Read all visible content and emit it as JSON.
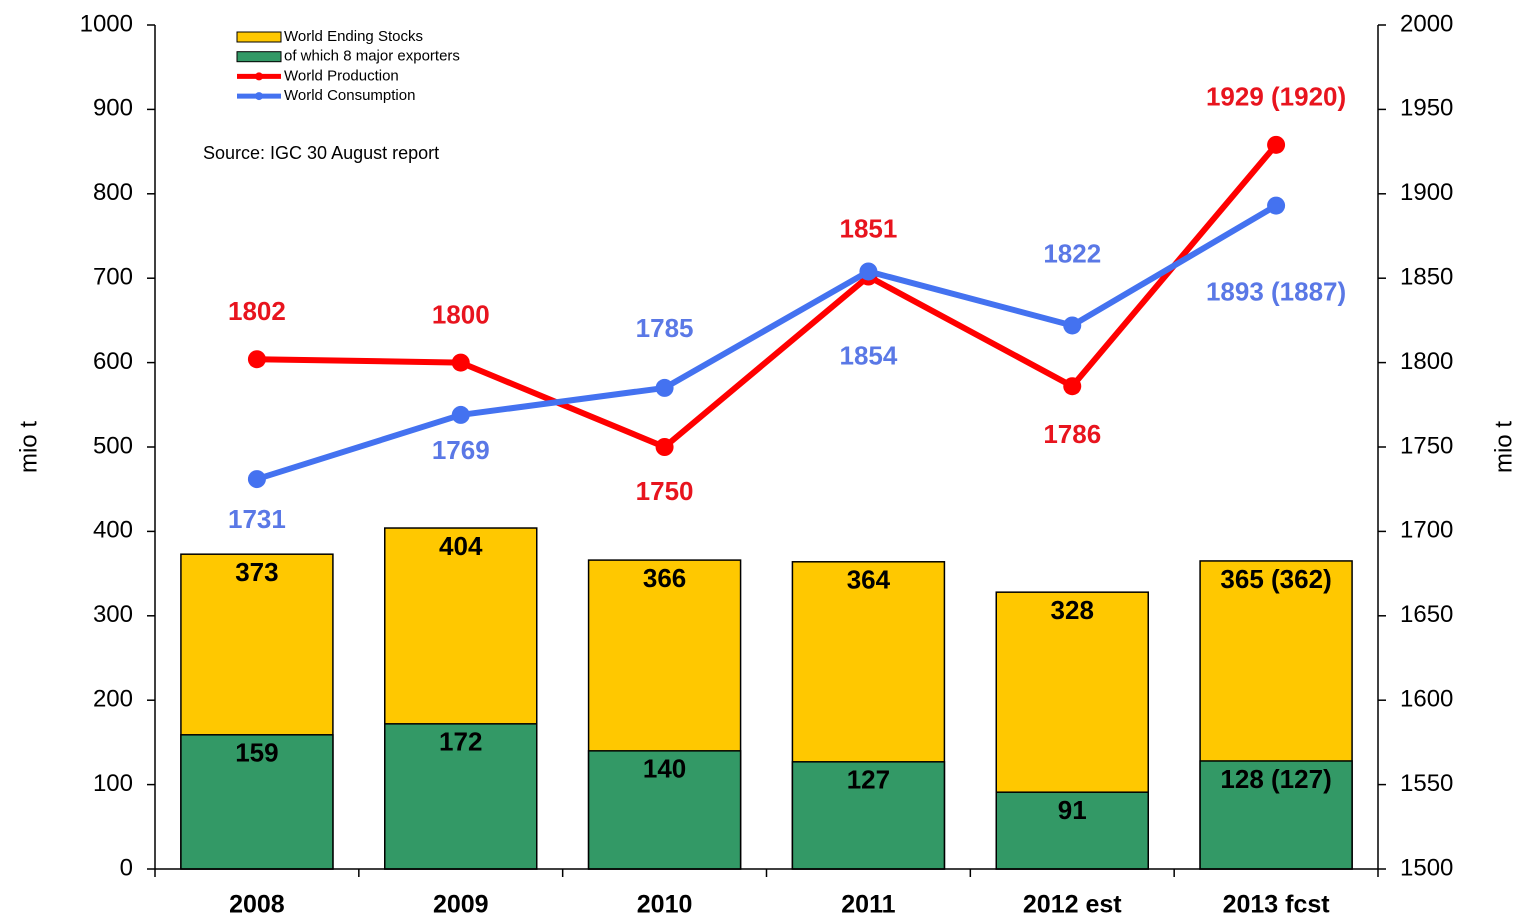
{
  "chart_data": {
    "type": "bar",
    "categories": [
      "2008",
      "2009",
      "2010",
      "2011",
      "2012 est",
      "2013 fcst"
    ],
    "series": [
      {
        "name": "World Ending Stocks",
        "type": "bar",
        "color": "#ffc800",
        "values": [
          373,
          404,
          366,
          364,
          328,
          365
        ],
        "value_labels": [
          "373",
          "404",
          "366",
          "364",
          "328",
          "365 (362)"
        ]
      },
      {
        "name": "of which 8 major exporters",
        "type": "bar",
        "color": "#339966",
        "values": [
          159,
          172,
          140,
          127,
          91,
          128
        ],
        "value_labels": [
          "159",
          "172",
          "140",
          "127",
          "91",
          "128 (127)"
        ]
      },
      {
        "name": "World Production",
        "type": "line",
        "axis": "y2",
        "color": "#ff0000",
        "label_color": "#e8141e",
        "values": [
          1802,
          1800,
          1750,
          1851,
          1786,
          1929
        ],
        "value_labels": [
          "1802",
          "1800",
          "1750",
          "1851",
          "1786",
          "1929 (1920)"
        ]
      },
      {
        "name": "World Consumption",
        "type": "line",
        "axis": "y2",
        "color": "#4472f0",
        "label_color": "#5a78e6",
        "values": [
          1731,
          1769,
          1785,
          1854,
          1822,
          1893
        ],
        "value_labels": [
          "1731",
          "1769",
          "1785",
          "1854",
          "1822",
          "1893 (1887)"
        ]
      }
    ],
    "ylabel": "mio t",
    "y2label": "mio t",
    "annotation": "Source: IGC 30 August report",
    "ylim": [
      0,
      1000
    ],
    "yticks": [
      0,
      100,
      200,
      300,
      400,
      500,
      600,
      700,
      800,
      900,
      1000
    ],
    "y2lim": [
      1500,
      2000
    ],
    "y2ticks": [
      1500,
      1550,
      1600,
      1650,
      1700,
      1750,
      1800,
      1850,
      1900,
      1950,
      2000
    ],
    "legend": "top-left"
  }
}
